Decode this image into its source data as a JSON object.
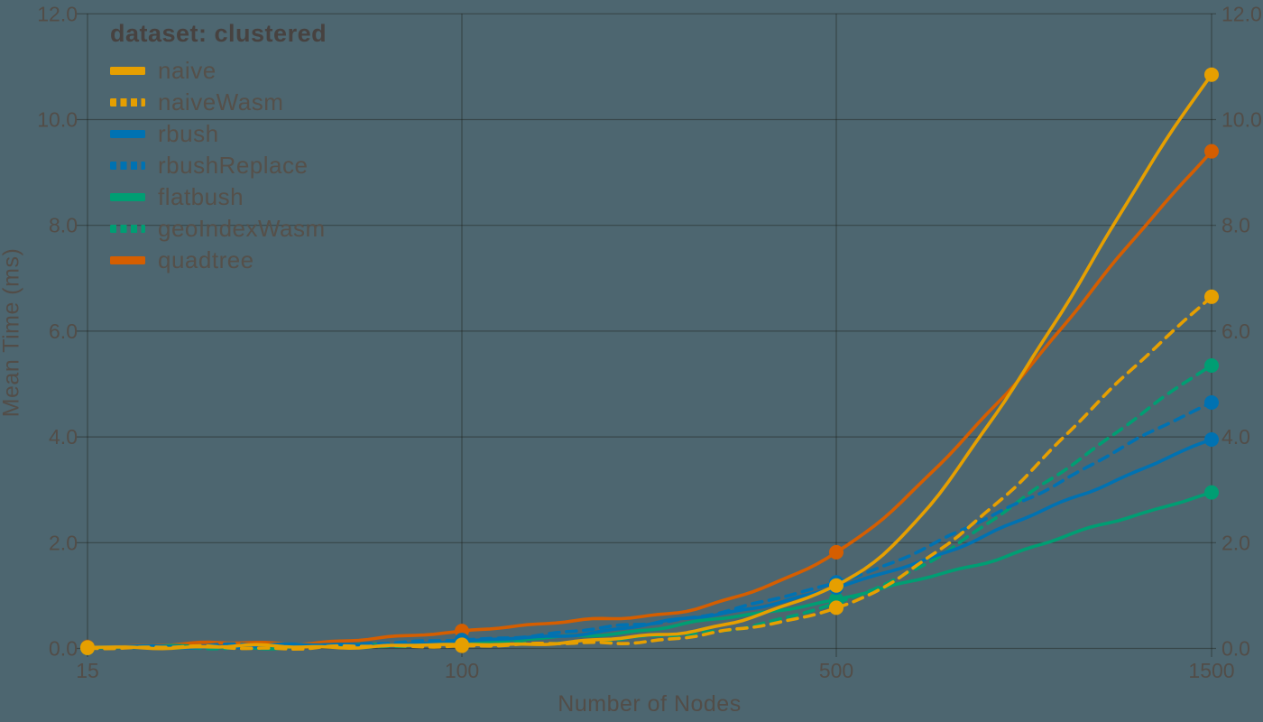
{
  "chart_data": {
    "type": "line",
    "title": "",
    "xlabel": "Number of Nodes",
    "ylabel": "Mean Time (ms)",
    "x_categories": [
      "15",
      "100",
      "500",
      "1500"
    ],
    "y_ticks": [
      0,
      2,
      4,
      6,
      8,
      10,
      12
    ],
    "y_tick_labels": [
      "0.0",
      "2.0",
      "4.0",
      "6.0",
      "8.0",
      "10.0",
      "12.0"
    ],
    "ylim": [
      0,
      12
    ],
    "grid": "on",
    "secondary_y_axis": "mirrored right",
    "legend_position": "top-left inside",
    "legend_title": "dataset: clustered",
    "series": [
      {
        "name": "naive",
        "color": "#E69F00",
        "dash": "solid",
        "values": [
          0.02,
          0.07,
          1.19,
          10.85
        ]
      },
      {
        "name": "naiveWasm",
        "color": "#E69F00",
        "dash": "dashed",
        "values": [
          0.01,
          0.05,
          0.77,
          6.65
        ]
      },
      {
        "name": "rbush",
        "color": "#0072B2",
        "dash": "solid",
        "values": [
          0.02,
          0.13,
          1.15,
          3.95
        ]
      },
      {
        "name": "rbushReplace",
        "color": "#0072B2",
        "dash": "dashed",
        "values": [
          0.02,
          0.16,
          1.25,
          4.65
        ]
      },
      {
        "name": "flatbush",
        "color": "#009E73",
        "dash": "solid",
        "values": [
          0.01,
          0.1,
          0.93,
          2.95
        ]
      },
      {
        "name": "geoIndexWasm",
        "color": "#009E73",
        "dash": "dashed",
        "values": [
          0.01,
          0.08,
          0.85,
          5.35
        ]
      },
      {
        "name": "quadtree",
        "color": "#D55E00",
        "dash": "solid",
        "values": [
          0.03,
          0.33,
          1.82,
          9.4
        ]
      }
    ]
  },
  "colors": {
    "background": "#4D6670",
    "text": "#524D48",
    "legend_title_text": "#474240",
    "legend_label_text": "#55504A",
    "grid": "rgba(28,28,22,0.42)"
  }
}
